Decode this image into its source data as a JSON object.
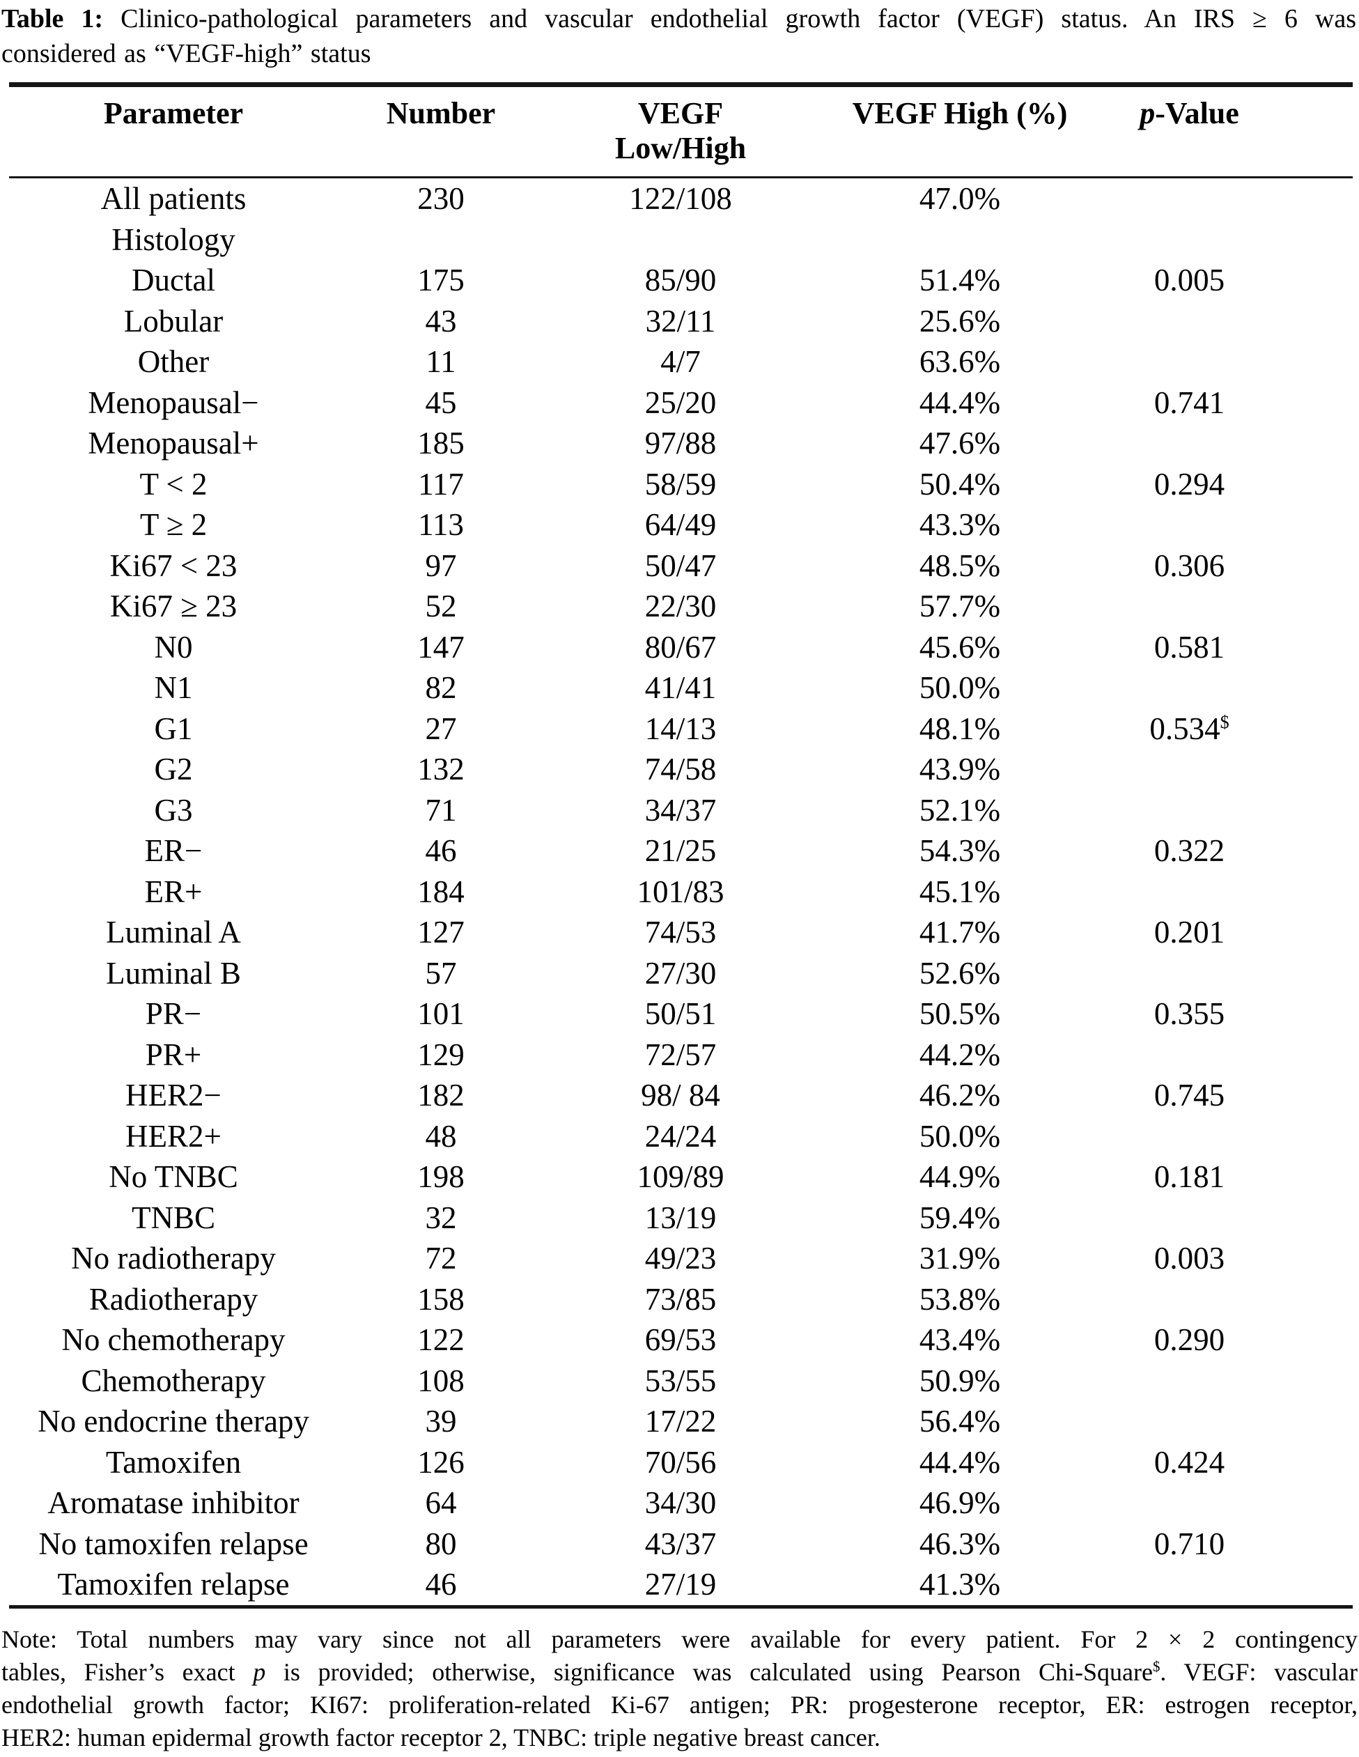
{
  "caption": {
    "lines": [
      {
        "just": true,
        "parts": [
          {
            "t": "Table 1:",
            "s": "b"
          },
          {
            "t": " Clinico-pathological parameters and vascular endothelial growth factor (VEGF) status. An IRS ≥ 6 was"
          }
        ]
      },
      {
        "just": false,
        "parts": [
          {
            "t": "considered as “VEGF-high” status"
          }
        ]
      }
    ]
  },
  "table": {
    "header": {
      "parameter": "Parameter",
      "number": "Number",
      "vegf_line1": "VEGF",
      "vegf_line2": "Low/High",
      "vegf_high": "VEGF High (%)",
      "p_italic": "p",
      "p_rest": "-Value"
    },
    "rows": [
      {
        "param": "All patients",
        "number": "230",
        "vegf": "122/108",
        "high": "47.0%",
        "p": ""
      },
      {
        "param": "Histology",
        "number": "",
        "vegf": "",
        "high": "",
        "p": ""
      },
      {
        "param": "Ductal",
        "number": "175",
        "vegf": "85/90",
        "high": "51.4%",
        "p": "0.005"
      },
      {
        "param": "Lobular",
        "number": "43",
        "vegf": "32/11",
        "high": "25.6%",
        "p": ""
      },
      {
        "param": "Other",
        "number": "11",
        "vegf": "4/7",
        "high": "63.6%",
        "p": ""
      },
      {
        "param": "Menopausal−",
        "number": "45",
        "vegf": "25/20",
        "high": "44.4%",
        "p": "0.741"
      },
      {
        "param": "Menopausal+",
        "number": "185",
        "vegf": "97/88",
        "high": "47.6%",
        "p": ""
      },
      {
        "param": "T < 2",
        "number": "117",
        "vegf": "58/59",
        "high": "50.4%",
        "p": "0.294"
      },
      {
        "param": "T ≥ 2",
        "number": "113",
        "vegf": "64/49",
        "high": "43.3%",
        "p": ""
      },
      {
        "param": "Ki67 < 23",
        "number": "97",
        "vegf": "50/47",
        "high": "48.5%",
        "p": "0.306"
      },
      {
        "param": "Ki67 ≥ 23",
        "number": "52",
        "vegf": "22/30",
        "high": "57.7%",
        "p": ""
      },
      {
        "param": "N0",
        "number": "147",
        "vegf": "80/67",
        "high": "45.6%",
        "p": "0.581"
      },
      {
        "param": "N1",
        "number": "82",
        "vegf": "41/41",
        "high": "50.0%",
        "p": ""
      },
      {
        "param": "G1",
        "number": "27",
        "vegf": "14/13",
        "high": "48.1%",
        "p": "0.534",
        "p_sup": "$"
      },
      {
        "param": "G2",
        "number": "132",
        "vegf": "74/58",
        "high": "43.9%",
        "p": ""
      },
      {
        "param": "G3",
        "number": "71",
        "vegf": "34/37",
        "high": "52.1%",
        "p": ""
      },
      {
        "param": "ER−",
        "number": "46",
        "vegf": "21/25",
        "high": "54.3%",
        "p": "0.322"
      },
      {
        "param": "ER+",
        "number": "184",
        "vegf": "101/83",
        "high": "45.1%",
        "p": ""
      },
      {
        "param": "Luminal A",
        "number": "127",
        "vegf": "74/53",
        "high": "41.7%",
        "p": "0.201"
      },
      {
        "param": "Luminal B",
        "number": "57",
        "vegf": "27/30",
        "high": "52.6%",
        "p": ""
      },
      {
        "param": "PR−",
        "number": "101",
        "vegf": "50/51",
        "high": "50.5%",
        "p": "0.355"
      },
      {
        "param": "PR+",
        "number": "129",
        "vegf": "72/57",
        "high": "44.2%",
        "p": ""
      },
      {
        "param": "HER2−",
        "number": "182",
        "vegf": "98/ 84",
        "high": "46.2%",
        "p": "0.745"
      },
      {
        "param": "HER2+",
        "number": "48",
        "vegf": "24/24",
        "high": "50.0%",
        "p": ""
      },
      {
        "param": "No TNBC",
        "number": "198",
        "vegf": "109/89",
        "high": "44.9%",
        "p": "0.181"
      },
      {
        "param": "TNBC",
        "number": "32",
        "vegf": "13/19",
        "high": "59.4%",
        "p": ""
      },
      {
        "param": "No radiotherapy",
        "number": "72",
        "vegf": "49/23",
        "high": "31.9%",
        "p": "0.003"
      },
      {
        "param": "Radiotherapy",
        "number": "158",
        "vegf": "73/85",
        "high": "53.8%",
        "p": ""
      },
      {
        "param": "No chemotherapy",
        "number": "122",
        "vegf": "69/53",
        "high": "43.4%",
        "p": "0.290"
      },
      {
        "param": "Chemotherapy",
        "number": "108",
        "vegf": "53/55",
        "high": "50.9%",
        "p": ""
      },
      {
        "param": "No endocrine therapy",
        "number": "39",
        "vegf": "17/22",
        "high": "56.4%",
        "p": ""
      },
      {
        "param": "Tamoxifen",
        "number": "126",
        "vegf": "70/56",
        "high": "44.4%",
        "p": "0.424"
      },
      {
        "param": "Aromatase inhibitor",
        "number": "64",
        "vegf": "34/30",
        "high": "46.9%",
        "p": ""
      },
      {
        "param": "No tamoxifen relapse",
        "number": "80",
        "vegf": "43/37",
        "high": "46.3%",
        "p": "0.710"
      },
      {
        "param": "Tamoxifen relapse",
        "number": "46",
        "vegf": "27/19",
        "high": "41.3%",
        "p": ""
      }
    ]
  },
  "note": {
    "lines": [
      {
        "just": true,
        "parts": [
          {
            "t": "Note: Total numbers may vary since not all parameters were available for every patient. For 2 × 2 contingency"
          }
        ]
      },
      {
        "just": true,
        "parts": [
          {
            "t": "tables, Fisher’s exact "
          },
          {
            "t": "p",
            "s": "i"
          },
          {
            "t": " is provided; otherwise, significance was calculated using Pearson Chi-Square"
          },
          {
            "t": "$",
            "s": "sup"
          },
          {
            "t": ". VEGF: vascular"
          }
        ]
      },
      {
        "just": true,
        "parts": [
          {
            "t": "endothelial growth factor; KI67: proliferation-related Ki-67 antigen; PR: progesterone receptor, ER: estrogen receptor,"
          }
        ]
      },
      {
        "just": false,
        "parts": [
          {
            "t": "HER2: human epidermal growth factor receptor 2, TNBC: triple negative breast cancer."
          }
        ]
      }
    ]
  }
}
